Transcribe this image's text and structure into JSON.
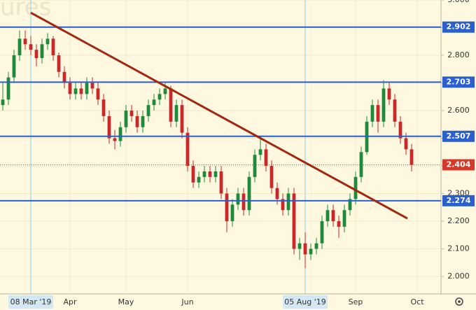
{
  "chart_data": {
    "type": "candlestick",
    "watermark": "ures",
    "up_color": "#1f8a3b",
    "down_color": "#c82828",
    "open": [
      2.62,
      2.64,
      2.72,
      2.8,
      2.86,
      2.84,
      2.82,
      2.79,
      2.84,
      2.86,
      2.8,
      2.74,
      2.7,
      2.66,
      2.68,
      2.66,
      2.7,
      2.68,
      2.64,
      2.58,
      2.5,
      2.49,
      2.54,
      2.6,
      2.58,
      2.54,
      2.58,
      2.62,
      2.64,
      2.66,
      2.68,
      2.56,
      2.62,
      2.52,
      2.4,
      2.34,
      2.36,
      2.38,
      2.36,
      2.38,
      2.3,
      2.2,
      2.26,
      2.3,
      2.24,
      2.36,
      2.44,
      2.46,
      2.4,
      2.32,
      2.28,
      2.24,
      2.3,
      2.1,
      2.12,
      2.08,
      2.1,
      2.12,
      2.2,
      2.24,
      2.2,
      2.18,
      2.24,
      2.28,
      2.36,
      2.45,
      2.56,
      2.62,
      2.56,
      2.68,
      2.64,
      2.56,
      2.5,
      2.46
    ],
    "high": [
      2.7,
      2.74,
      2.82,
      2.89,
      2.89,
      2.87,
      2.84,
      2.86,
      2.88,
      2.87,
      2.81,
      2.76,
      2.72,
      2.7,
      2.7,
      2.72,
      2.72,
      2.7,
      2.66,
      2.6,
      2.53,
      2.56,
      2.62,
      2.62,
      2.6,
      2.6,
      2.64,
      2.66,
      2.68,
      2.7,
      2.69,
      2.64,
      2.64,
      2.54,
      2.42,
      2.38,
      2.4,
      2.4,
      2.4,
      2.4,
      2.32,
      2.28,
      2.32,
      2.32,
      2.38,
      2.46,
      2.5,
      2.48,
      2.42,
      2.34,
      2.3,
      2.32,
      2.32,
      2.14,
      2.16,
      2.12,
      2.14,
      2.22,
      2.26,
      2.26,
      2.22,
      2.26,
      2.3,
      2.38,
      2.47,
      2.58,
      2.64,
      2.64,
      2.71,
      2.7,
      2.66,
      2.58,
      2.52,
      2.48
    ],
    "low": [
      2.6,
      2.62,
      2.7,
      2.78,
      2.82,
      2.8,
      2.76,
      2.77,
      2.82,
      2.78,
      2.72,
      2.68,
      2.64,
      2.64,
      2.64,
      2.64,
      2.66,
      2.62,
      2.56,
      2.48,
      2.46,
      2.47,
      2.52,
      2.56,
      2.52,
      2.52,
      2.56,
      2.6,
      2.62,
      2.64,
      2.54,
      2.54,
      2.5,
      2.38,
      2.32,
      2.32,
      2.34,
      2.34,
      2.34,
      2.28,
      2.16,
      2.18,
      2.24,
      2.22,
      2.22,
      2.34,
      2.42,
      2.38,
      2.3,
      2.26,
      2.22,
      2.22,
      2.08,
      2.06,
      2.03,
      2.06,
      2.08,
      2.1,
      2.18,
      2.18,
      2.14,
      2.16,
      2.22,
      2.26,
      2.34,
      2.44,
      2.54,
      2.52,
      2.54,
      2.62,
      2.54,
      2.48,
      2.44,
      2.38
    ],
    "close": [
      2.64,
      2.72,
      2.8,
      2.86,
      2.84,
      2.82,
      2.79,
      2.84,
      2.86,
      2.8,
      2.74,
      2.7,
      2.66,
      2.68,
      2.66,
      2.7,
      2.68,
      2.64,
      2.58,
      2.5,
      2.49,
      2.54,
      2.6,
      2.58,
      2.54,
      2.58,
      2.62,
      2.64,
      2.66,
      2.68,
      2.56,
      2.62,
      2.52,
      2.4,
      2.34,
      2.36,
      2.38,
      2.36,
      2.38,
      2.3,
      2.2,
      2.26,
      2.3,
      2.24,
      2.36,
      2.44,
      2.46,
      2.4,
      2.32,
      2.28,
      2.24,
      2.3,
      2.1,
      2.12,
      2.08,
      2.1,
      2.12,
      2.2,
      2.24,
      2.2,
      2.18,
      2.24,
      2.28,
      2.36,
      2.45,
      2.56,
      2.62,
      2.56,
      2.68,
      2.64,
      2.56,
      2.5,
      2.46,
      2.404
    ],
    "xlim": [
      -0.5,
      78.25
    ],
    "xticks": [
      {
        "value": 5,
        "label": "08 Mar '19"
      },
      {
        "value": 12,
        "label": "Apr"
      },
      {
        "value": 22,
        "label": "May"
      },
      {
        "value": 33,
        "label": "Jun"
      },
      {
        "value": 54,
        "label": "05 Aug '19"
      },
      {
        "value": 63,
        "label": "Sep"
      },
      {
        "value": 74,
        "label": "Oct"
      }
    ],
    "highlighted_xticks": [
      0,
      4
    ],
    "ylim": [
      1.937,
      3.0
    ],
    "yticks": [
      {
        "value": 3.0,
        "label": "3.000"
      },
      {
        "value": 2.9,
        "label": "2.900"
      },
      {
        "value": 2.8,
        "label": "2.800"
      },
      {
        "value": 2.7,
        "label": "2.700"
      },
      {
        "value": 2.6,
        "label": "2.600"
      },
      {
        "value": 2.5,
        "label": "2.500"
      },
      {
        "value": 2.4,
        "label": "2.400"
      },
      {
        "value": 2.3,
        "label": "2.300"
      },
      {
        "value": 2.2,
        "label": "2.200"
      },
      {
        "value": 2.1,
        "label": "2.100"
      },
      {
        "value": 2.0,
        "label": "2.000"
      }
    ],
    "grid": true,
    "levels": [
      {
        "value": 2.902,
        "label": "2.902"
      },
      {
        "value": 2.703,
        "label": "2.703"
      },
      {
        "value": 2.507,
        "label": "2.507"
      },
      {
        "value": 2.274,
        "label": "2.274"
      }
    ],
    "level_color": "#2a5fd0",
    "last_price": {
      "value": 2.404,
      "label": "2.404"
    },
    "last_price_color": "#d43a2a",
    "trendline": {
      "x": [
        5,
        72.25
      ],
      "y": [
        2.954,
        2.21
      ],
      "color": "#a3260f"
    }
  }
}
